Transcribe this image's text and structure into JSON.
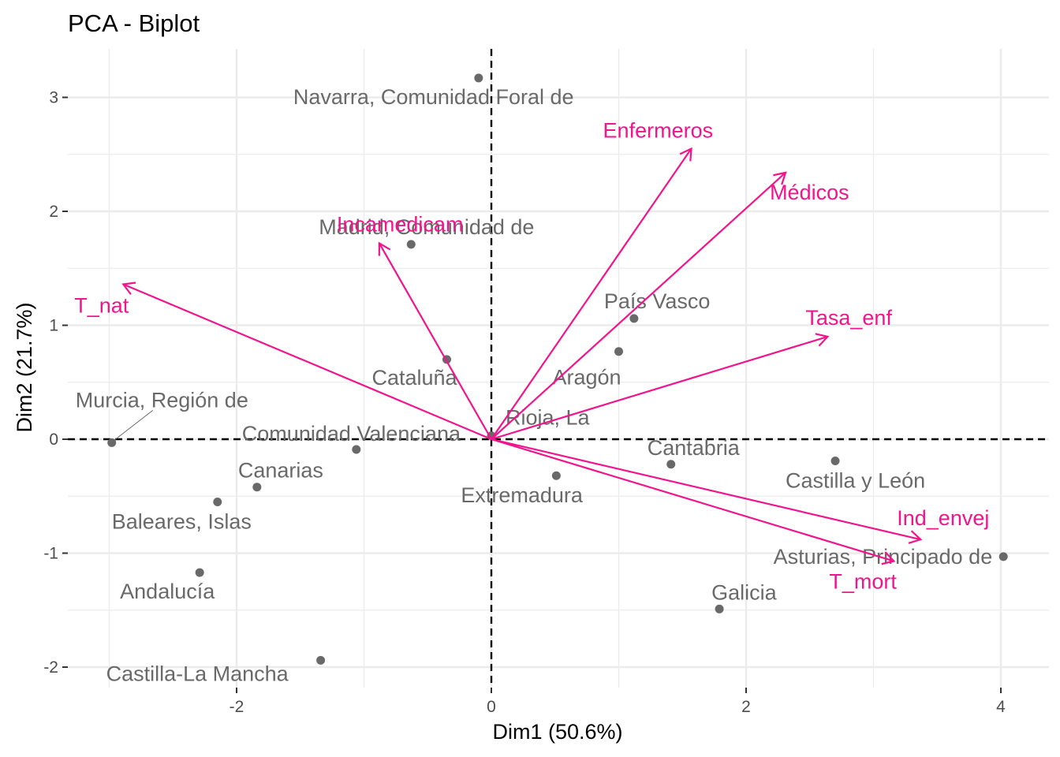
{
  "chart_data": {
    "type": "scatter",
    "subtype": "pca-biplot",
    "title": "PCA - Biplot",
    "xlabel": "Dim1 (50.6%)",
    "ylabel": "Dim2 (21.7%)",
    "xlim": [
      -3.1,
      4.5
    ],
    "ylim": [
      -2.2,
      3.45
    ],
    "xticks": [
      -2,
      0,
      2,
      4
    ],
    "yticks": [
      -2,
      -1,
      0,
      1,
      2,
      3
    ],
    "grid": true,
    "reference_lines": {
      "x": 0,
      "y": 0,
      "style": "dashed"
    },
    "colors": {
      "individuals": "#696969",
      "variables": "#f0158c",
      "grid": "#ebebeb",
      "axis": "#000000"
    },
    "individuals": [
      {
        "name": "Navarra, Comunidad Foral de",
        "x": -0.1,
        "y": 3.17
      },
      {
        "name": "Madrid, Comunidad de",
        "x": -0.63,
        "y": 1.71
      },
      {
        "name": "Cataluña",
        "x": -0.35,
        "y": 0.7
      },
      {
        "name": "País Vasco",
        "x": 1.12,
        "y": 1.06
      },
      {
        "name": "Aragón",
        "x": 1.0,
        "y": 0.77
      },
      {
        "name": "Rioja, La",
        "x": 0.0,
        "y": 0.03
      },
      {
        "name": "Comunidad Valenciana",
        "x": -1.06,
        "y": -0.09
      },
      {
        "name": "Murcia, Región de",
        "x": -2.98,
        "y": -0.03
      },
      {
        "name": "Canarias",
        "x": -1.84,
        "y": -0.42
      },
      {
        "name": "Baleares, Islas",
        "x": -2.15,
        "y": -0.55
      },
      {
        "name": "Andalucía",
        "x": -2.29,
        "y": -1.17
      },
      {
        "name": "Castilla-La Mancha",
        "x": -1.34,
        "y": -1.94
      },
      {
        "name": "Extremadura",
        "x": 0.51,
        "y": -0.32
      },
      {
        "name": "Cantabria",
        "x": 1.41,
        "y": -0.22
      },
      {
        "name": "Castilla y León",
        "x": 2.7,
        "y": -0.19
      },
      {
        "name": "Galicia",
        "x": 1.79,
        "y": -1.49
      },
      {
        "name": "Asturias, Principado de",
        "x": 4.02,
        "y": -1.03
      }
    ],
    "variables": [
      {
        "name": "Enfermeros",
        "x": 1.57,
        "y": 2.55
      },
      {
        "name": "Médicos",
        "x": 2.31,
        "y": 2.34
      },
      {
        "name": "Incamedicam",
        "x": -0.88,
        "y": 1.72
      },
      {
        "name": "T_nat",
        "x": -2.89,
        "y": 1.36
      },
      {
        "name": "Tasa_enf",
        "x": 2.64,
        "y": 0.9
      },
      {
        "name": "Ind_envej",
        "x": 3.37,
        "y": -0.88
      },
      {
        "name": "T_mort",
        "x": 3.16,
        "y": -1.07
      }
    ]
  }
}
